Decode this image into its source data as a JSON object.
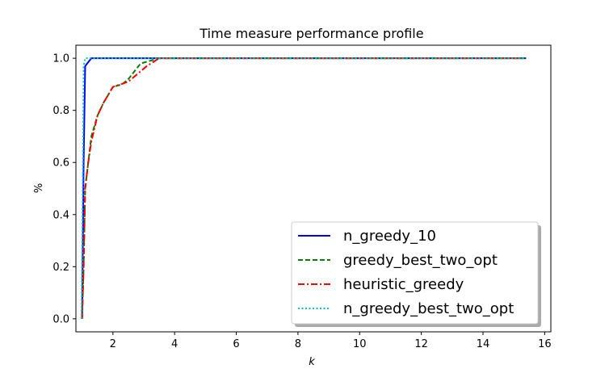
{
  "chart_data": {
    "type": "line",
    "title": "Time measure performance profile",
    "xlabel": "k",
    "ylabel": "%",
    "xlim": [
      0.8,
      16.2
    ],
    "ylim": [
      -0.05,
      1.05
    ],
    "xticks": [
      2,
      4,
      6,
      8,
      10,
      12,
      14,
      16
    ],
    "yticks": [
      0.0,
      0.2,
      0.4,
      0.6,
      0.8,
      1.0
    ],
    "grid": false,
    "legend_position": "lower-right",
    "series": [
      {
        "name": "n_greedy_10",
        "color": "#0000ff",
        "style": "solid",
        "points": [
          [
            1.0,
            0.0
          ],
          [
            1.05,
            0.6
          ],
          [
            1.1,
            0.97
          ],
          [
            1.3,
            1.0
          ],
          [
            15.4,
            1.0
          ]
        ]
      },
      {
        "name": "greedy_best_two_opt",
        "color": "#008000",
        "style": "dashed",
        "points": [
          [
            1.0,
            0.0
          ],
          [
            1.05,
            0.2
          ],
          [
            1.1,
            0.5
          ],
          [
            1.2,
            0.6
          ],
          [
            1.3,
            0.7
          ],
          [
            1.5,
            0.78
          ],
          [
            1.7,
            0.83
          ],
          [
            2.0,
            0.89
          ],
          [
            2.3,
            0.9
          ],
          [
            2.5,
            0.92
          ],
          [
            2.7,
            0.95
          ],
          [
            2.9,
            0.98
          ],
          [
            3.2,
            0.99
          ],
          [
            3.5,
            1.0
          ],
          [
            15.4,
            1.0
          ]
        ]
      },
      {
        "name": "heuristic_greedy",
        "color": "#ff0000",
        "style": "dashdot",
        "points": [
          [
            1.0,
            0.0
          ],
          [
            1.05,
            0.2
          ],
          [
            1.1,
            0.5
          ],
          [
            1.2,
            0.6
          ],
          [
            1.3,
            0.68
          ],
          [
            1.5,
            0.78
          ],
          [
            1.7,
            0.83
          ],
          [
            2.0,
            0.89
          ],
          [
            2.5,
            0.91
          ],
          [
            2.8,
            0.94
          ],
          [
            3.1,
            0.97
          ],
          [
            3.5,
            1.0
          ],
          [
            15.4,
            1.0
          ]
        ]
      },
      {
        "name": "n_greedy_best_two_opt",
        "color": "#00bfbf",
        "style": "dotted",
        "points": [
          [
            0.98,
            0.0
          ],
          [
            1.02,
            0.5
          ],
          [
            1.05,
            0.97
          ],
          [
            1.1,
            1.0
          ],
          [
            15.4,
            1.0
          ]
        ]
      }
    ]
  }
}
